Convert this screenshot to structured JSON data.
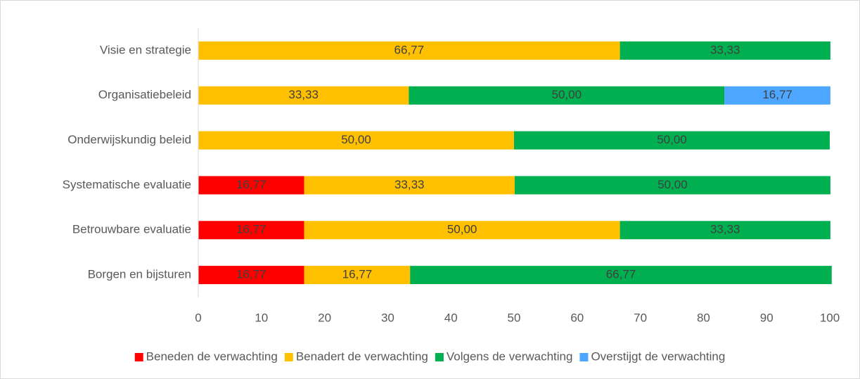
{
  "chart_data": {
    "type": "stacked_barh",
    "categories": [
      "Visie en strategie",
      "Organisatiebeleid",
      "Onderwijskundig beleid",
      "Systematische evaluatie",
      "Betrouwbare evaluatie",
      "Borgen en bijsturen"
    ],
    "series": [
      {
        "name": "Beneden de verwachting",
        "color": "#ff0000",
        "values": [
          null,
          null,
          null,
          16.77,
          16.77,
          16.77
        ],
        "value_labels": [
          null,
          null,
          null,
          "16,77",
          "16,77",
          "16,77"
        ]
      },
      {
        "name": "Benadert de verwachting",
        "color": "#ffc000",
        "values": [
          66.77,
          33.33,
          50.0,
          33.33,
          50.0,
          16.77
        ],
        "value_labels": [
          "66,77",
          "33,33",
          "50,00",
          "33,33",
          "50,00",
          "16,77"
        ]
      },
      {
        "name": "Volgens de verwachting",
        "color": "#00b050",
        "values": [
          33.33,
          50.0,
          50.0,
          50.0,
          33.33,
          66.77
        ],
        "value_labels": [
          "33,33",
          "50,00",
          "50,00",
          "50,00",
          "33,33",
          "66,77"
        ]
      },
      {
        "name": "Overstijgt de verwachting",
        "color": "#4da6ff",
        "values": [
          null,
          16.77,
          null,
          null,
          null,
          null
        ],
        "value_labels": [
          null,
          "16,77",
          null,
          null,
          null,
          null
        ]
      }
    ],
    "xlim": [
      0,
      100
    ],
    "xticks": [
      0,
      10,
      20,
      30,
      40,
      50,
      60,
      70,
      80,
      90,
      100
    ],
    "grid": false,
    "legend": "bottom"
  }
}
